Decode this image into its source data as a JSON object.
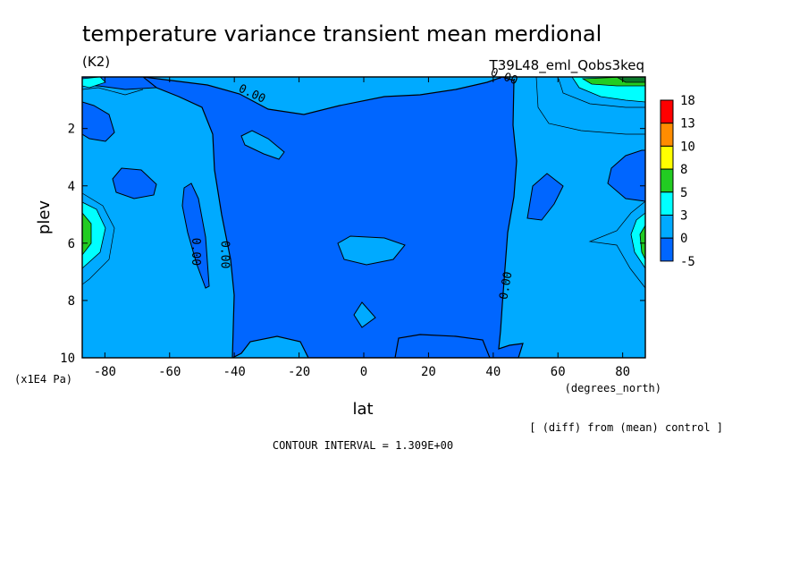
{
  "header": {
    "title": "temperature variance transient mean merdional",
    "units": "(K2)",
    "experiment": "T39L48_eml_Qobs3keq"
  },
  "footer": {
    "y_unit": "(x1E4 Pa)",
    "x_unit": "(degrees_north)",
    "diff_note": "[ (diff) from (mean) control ]",
    "contour_interval": "CONTOUR INTERVAL = 1.309E+00"
  },
  "chart_data": {
    "type": "heatmap",
    "title": "temperature variance transient mean merdional",
    "xlabel": "lat",
    "ylabel": "plev",
    "xlim": [
      -87,
      87
    ],
    "ylim": [
      10,
      0.2
    ],
    "x_ticks": [
      -80,
      -60,
      -40,
      -20,
      0,
      20,
      40,
      60,
      80
    ],
    "x_tick_labels": [
      "-80",
      "-60",
      "-40",
      "-20",
      "0",
      "20",
      "40",
      "60",
      "80"
    ],
    "y_ticks": [
      2,
      4,
      6,
      8,
      10
    ],
    "y_tick_labels": [
      "2",
      "4",
      "6",
      "8",
      "10"
    ],
    "colorbar": {
      "levels": [
        "18",
        "13",
        "10",
        "8",
        "5",
        "3",
        "0",
        "-5"
      ],
      "colors": [
        "#ff0000",
        "#ff8c00",
        "#ffff00",
        "#22cc22",
        "#00ffff",
        "#00aaff",
        "#0066ff"
      ]
    },
    "contour_labels": [
      {
        "text": "0.00",
        "lat": -35,
        "plev": 0.9,
        "angle": 25
      },
      {
        "text": "0.00",
        "lat": 43,
        "plev": 0.3,
        "angle": 20
      },
      {
        "text": "0.00",
        "lat": -53,
        "plev": 6.3,
        "angle": 90
      },
      {
        "text": "0.00",
        "lat": -44,
        "plev": 6.4,
        "angle": 90
      },
      {
        "text": "0.00",
        "lat": 45,
        "plev": 7.5,
        "angle": -80
      }
    ],
    "grid": false,
    "legend": "right"
  }
}
